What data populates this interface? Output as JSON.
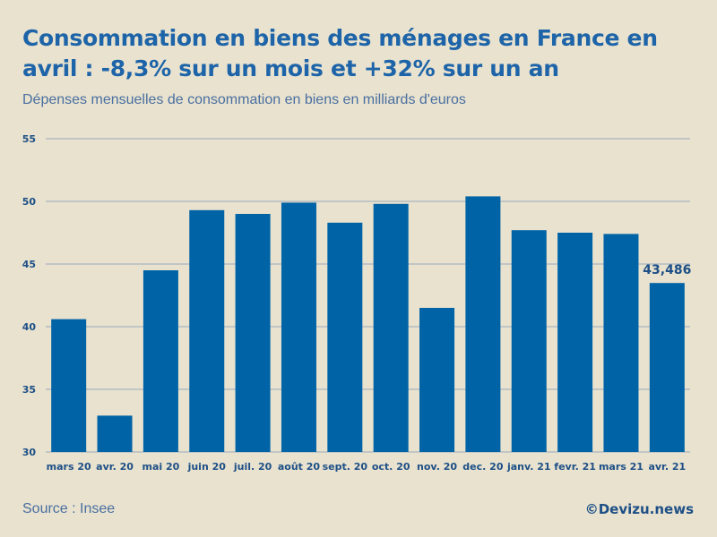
{
  "header": {
    "title": "Consommation en biens des ménages en France en avril : -8,3% sur un mois et +32% sur un an",
    "subtitle": "Dépenses mensuelles de consommation en biens en milliards d'euros"
  },
  "footer": {
    "source": "Source : Insee",
    "credit": "©Devizu.news"
  },
  "colors": {
    "bar": "#0063a6",
    "grid": "#9aaabb",
    "text": "#1e4f86"
  },
  "chart_data": {
    "type": "bar",
    "title": "Consommation en biens des ménages en France en avril : -8,3% sur un mois et +32% sur un an",
    "ylabel": "Dépenses mensuelles de consommation en biens en milliards d'euros",
    "xlabel": "",
    "categories": [
      "mars 20",
      "avr. 20",
      "mai 20",
      "juin 20",
      "juil. 20",
      "août 20",
      "sept. 20",
      "oct. 20",
      "nov. 20",
      "dec. 20",
      "janv. 21",
      "fevr. 21",
      "mars 21",
      "avr. 21"
    ],
    "values": [
      40.6,
      32.9,
      44.5,
      49.3,
      49.0,
      49.9,
      48.3,
      49.8,
      41.5,
      50.4,
      47.7,
      47.5,
      47.4,
      43.486
    ],
    "ylim": [
      30,
      55
    ],
    "yticks": [
      "30",
      "35",
      "40",
      "45",
      "50",
      "55"
    ],
    "grid": true,
    "annotations": [
      {
        "index": 13,
        "text": "43,486"
      }
    ]
  }
}
